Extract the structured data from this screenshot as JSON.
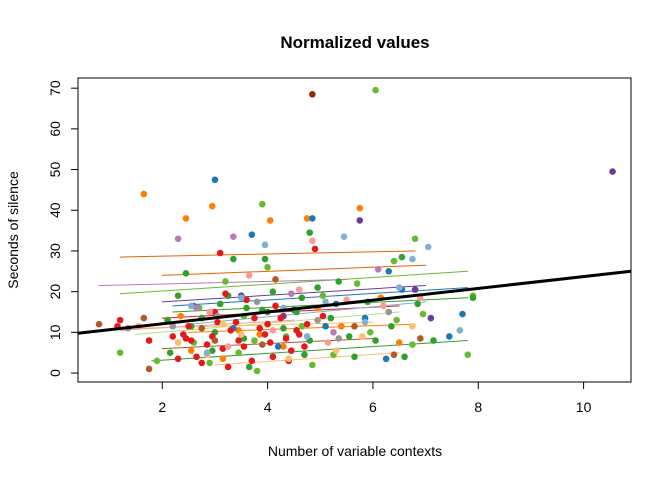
{
  "chart_data": {
    "type": "scatter",
    "title": "Normalized values",
    "xlabel": "Number of variable contexts",
    "ylabel": "Seconds of silence",
    "xlim": [
      0.4,
      10.9
    ],
    "ylim": [
      -2.2,
      72.5
    ],
    "x_ticks": [
      "2",
      "4",
      "6",
      "8",
      "10"
    ],
    "y_ticks": [
      "0",
      "10",
      "20",
      "30",
      "40",
      "50",
      "60",
      "70"
    ],
    "grid": false,
    "legend": "none",
    "overall_fit": {
      "color": "#000000",
      "intercept": 9.2,
      "slope": 1.45
    },
    "group_fits": [
      {
        "color": "#e66101",
        "x": [
          1.2,
          6.8
        ],
        "y": [
          28.5,
          30.0
        ]
      },
      {
        "color": "#e66101",
        "x": [
          2.0,
          7.0
        ],
        "y": [
          24.0,
          26.5
        ]
      },
      {
        "color": "#66bb33",
        "x": [
          1.2,
          7.8
        ],
        "y": [
          19.5,
          25.0
        ]
      },
      {
        "color": "#ba7ab5",
        "x": [
          0.8,
          5.5
        ],
        "y": [
          21.5,
          23.0
        ]
      },
      {
        "color": "#1f78b4",
        "x": [
          2.2,
          7.8
        ],
        "y": [
          16.5,
          21.0
        ]
      },
      {
        "color": "#6a3d9a",
        "x": [
          2.0,
          7.0
        ],
        "y": [
          17.5,
          21.5
        ]
      },
      {
        "color": "#33a02c",
        "x": [
          2.2,
          7.8
        ],
        "y": [
          15.0,
          18.5
        ]
      },
      {
        "color": "#e31a1c",
        "x": [
          2.0,
          6.5
        ],
        "y": [
          13.5,
          16.5
        ]
      },
      {
        "color": "#80b1d3",
        "x": [
          2.5,
          7.0
        ],
        "y": [
          12.0,
          17.5
        ]
      },
      {
        "color": "#b2df8a",
        "x": [
          1.5,
          6.5
        ],
        "y": [
          9.5,
          15.0
        ]
      },
      {
        "color": "#fdbf6f",
        "x": [
          1.5,
          6.0
        ],
        "y": [
          11.0,
          12.5
        ]
      },
      {
        "color": "#ff7f00",
        "x": [
          2.5,
          6.8
        ],
        "y": [
          10.0,
          12.0
        ]
      },
      {
        "color": "#fb9a99",
        "x": [
          1.2,
          4.5
        ],
        "y": [
          10.5,
          13.0
        ]
      },
      {
        "color": "#33a02c",
        "x": [
          1.8,
          7.8
        ],
        "y": [
          3.0,
          8.0
        ]
      },
      {
        "color": "#b15928",
        "x": [
          2.0,
          6.0
        ],
        "y": [
          6.0,
          8.5
        ]
      },
      {
        "color": "#fdbf6f",
        "x": [
          3.0,
          6.5
        ],
        "y": [
          2.0,
          5.0
        ]
      }
    ],
    "series": [
      {
        "name": "",
        "color": "#8c2d04",
        "points": [
          [
            4.85,
            68.5
          ]
        ]
      },
      {
        "name": "",
        "color": "#6a3d9a",
        "points": [
          [
            10.55,
            49.5
          ],
          [
            5.75,
            37.5
          ],
          [
            7.1,
            13.5
          ],
          [
            4.3,
            14.0
          ],
          [
            3.5,
            19.0
          ],
          [
            6.8,
            20.5
          ]
        ]
      },
      {
        "name": "",
        "color": "#66bb33",
        "points": [
          [
            6.05,
            69.5
          ],
          [
            6.8,
            33.0
          ],
          [
            3.9,
            41.5
          ],
          [
            7.8,
            4.5
          ],
          [
            7.9,
            19.0
          ],
          [
            6.45,
            13.0
          ],
          [
            3.55,
            14.0
          ],
          [
            5.7,
            22.0
          ],
          [
            1.9,
            3.0
          ],
          [
            4.0,
            26.0
          ],
          [
            2.7,
            16.0
          ],
          [
            3.2,
            22.5
          ],
          [
            5.95,
            10.0
          ],
          [
            6.4,
            27.5
          ],
          [
            6.75,
            7.0
          ],
          [
            4.65,
            11.5
          ],
          [
            3.8,
            0.5
          ],
          [
            5.25,
            4.5
          ],
          [
            2.9,
            2.5
          ],
          [
            4.35,
            9.0
          ],
          [
            3.45,
            5.0
          ],
          [
            6.95,
            14.5
          ],
          [
            4.85,
            2.0
          ],
          [
            1.2,
            5.0
          ],
          [
            3.75,
            8.0
          ],
          [
            2.6,
            7.5
          ],
          [
            5.05,
            19.0
          ]
        ]
      },
      {
        "name": "",
        "color": "#ff7f00",
        "points": [
          [
            1.65,
            44.0
          ],
          [
            2.45,
            38.0
          ],
          [
            2.95,
            41.0
          ],
          [
            4.05,
            37.5
          ],
          [
            4.75,
            38.0
          ],
          [
            5.75,
            40.5
          ],
          [
            3.15,
            3.5
          ],
          [
            4.3,
            6.5
          ],
          [
            5.4,
            11.5
          ],
          [
            2.55,
            5.5
          ],
          [
            6.5,
            7.5
          ],
          [
            3.85,
            9.5
          ],
          [
            2.35,
            14.0
          ],
          [
            6.15,
            18.5
          ],
          [
            3.45,
            10.5
          ],
          [
            4.95,
            16.0
          ]
        ]
      },
      {
        "name": "",
        "color": "#1f78b4",
        "points": [
          [
            3.0,
            47.5
          ],
          [
            4.85,
            38.0
          ],
          [
            3.7,
            34.0
          ],
          [
            6.3,
            25.0
          ],
          [
            5.1,
            11.5
          ],
          [
            2.6,
            16.5
          ],
          [
            6.55,
            20.5
          ],
          [
            4.2,
            6.5
          ],
          [
            7.45,
            9.0
          ],
          [
            5.85,
            13.5
          ],
          [
            4.5,
            15.5
          ],
          [
            3.35,
            11.0
          ],
          [
            7.7,
            14.5
          ],
          [
            5.3,
            17.0
          ],
          [
            6.25,
            3.5
          ]
        ]
      },
      {
        "name": "",
        "color": "#33a02c",
        "points": [
          [
            3.95,
            28.0
          ],
          [
            3.35,
            28.0
          ],
          [
            4.8,
            34.5
          ],
          [
            2.45,
            24.5
          ],
          [
            6.55,
            28.5
          ],
          [
            5.65,
            4.0
          ],
          [
            2.15,
            5.0
          ],
          [
            4.7,
            4.5
          ],
          [
            7.9,
            18.5
          ],
          [
            4.1,
            20.0
          ],
          [
            3.0,
            10.0
          ],
          [
            5.9,
            17.5
          ],
          [
            2.75,
            13.5
          ],
          [
            4.55,
            15.0
          ],
          [
            6.6,
            4.0
          ],
          [
            3.65,
            1.5
          ],
          [
            5.2,
            13.5
          ],
          [
            2.3,
            19.0
          ],
          [
            3.9,
            15.5
          ],
          [
            6.05,
            8.0
          ],
          [
            4.95,
            21.0
          ],
          [
            2.55,
            11.5
          ],
          [
            3.25,
            19.0
          ],
          [
            4.3,
            11.0
          ],
          [
            5.55,
            9.0
          ],
          [
            7.15,
            8.0
          ],
          [
            3.6,
            16.0
          ],
          [
            2.95,
            5.5
          ],
          [
            4.65,
            18.5
          ],
          [
            6.35,
            11.5
          ],
          [
            4.0,
            15.0
          ],
          [
            2.1,
            13.0
          ],
          [
            3.55,
            8.5
          ],
          [
            5.35,
            22.5
          ],
          [
            4.8,
            8.0
          ],
          [
            3.1,
            17.0
          ],
          [
            6.85,
            17.0
          ]
        ]
      },
      {
        "name": "",
        "color": "#e31a1c",
        "points": [
          [
            1.2,
            13.0
          ],
          [
            1.75,
            8.0
          ],
          [
            2.3,
            3.5
          ],
          [
            2.45,
            8.5
          ],
          [
            2.5,
            11.5
          ],
          [
            2.75,
            2.5
          ],
          [
            2.95,
            9.0
          ],
          [
            3.1,
            29.5
          ],
          [
            3.15,
            6.0
          ],
          [
            3.25,
            1.5
          ],
          [
            3.4,
            12.5
          ],
          [
            3.55,
            6.5
          ],
          [
            3.7,
            3.0
          ],
          [
            3.85,
            11.0
          ],
          [
            4.05,
            7.5
          ],
          [
            4.1,
            4.0
          ],
          [
            4.25,
            13.5
          ],
          [
            4.45,
            5.5
          ],
          [
            4.6,
            9.5
          ],
          [
            4.75,
            12.0
          ],
          [
            4.9,
            30.5
          ],
          [
            5.05,
            14.0
          ],
          [
            2.65,
            4.0
          ],
          [
            3.0,
            15.0
          ],
          [
            3.3,
            10.5
          ],
          [
            3.6,
            18.0
          ],
          [
            4.15,
            16.5
          ],
          [
            4.4,
            3.0
          ],
          [
            2.2,
            9.0
          ],
          [
            2.85,
            7.0
          ],
          [
            3.45,
            8.0
          ],
          [
            3.95,
            9.5
          ],
          [
            4.55,
            10.5
          ],
          [
            3.75,
            13.5
          ],
          [
            2.55,
            8.0
          ],
          [
            3.05,
            12.5
          ],
          [
            4.35,
            8.5
          ],
          [
            1.15,
            11.5
          ],
          [
            2.4,
            9.5
          ],
          [
            3.2,
            19.5
          ],
          [
            4.0,
            12.0
          ],
          [
            4.7,
            6.5
          ]
        ]
      },
      {
        "name": "",
        "color": "#fb9a99",
        "points": [
          [
            4.85,
            32.5
          ],
          [
            4.6,
            20.5
          ],
          [
            6.9,
            18.5
          ],
          [
            1.55,
            11.5
          ],
          [
            3.65,
            24.0
          ],
          [
            5.5,
            18.0
          ],
          [
            2.9,
            15.0
          ],
          [
            4.1,
            10.5
          ],
          [
            6.2,
            16.5
          ],
          [
            3.25,
            6.5
          ],
          [
            5.15,
            7.5
          ]
        ]
      },
      {
        "name": "",
        "color": "#fdbf6f",
        "points": [
          [
            5.3,
            5.5
          ],
          [
            2.3,
            7.5
          ],
          [
            4.4,
            3.5
          ],
          [
            6.75,
            11.5
          ],
          [
            3.5,
            9.5
          ],
          [
            2.85,
            4.5
          ],
          [
            5.8,
            9.0
          ],
          [
            3.15,
            12.0
          ]
        ]
      },
      {
        "name": "",
        "color": "#80b1d3",
        "points": [
          [
            3.95,
            31.5
          ],
          [
            5.45,
            33.5
          ],
          [
            6.75,
            28.0
          ],
          [
            7.05,
            31.0
          ],
          [
            2.55,
            16.5
          ],
          [
            4.3,
            16.0
          ],
          [
            5.85,
            12.5
          ],
          [
            3.5,
            18.5
          ],
          [
            6.5,
            21.0
          ],
          [
            7.65,
            10.5
          ],
          [
            4.75,
            9.0
          ],
          [
            2.85,
            5.0
          ],
          [
            5.1,
            17.5
          ]
        ]
      },
      {
        "name": "",
        "color": "#ba7ab5",
        "points": [
          [
            2.3,
            33.0
          ],
          [
            3.35,
            33.5
          ],
          [
            2.65,
            16.0
          ],
          [
            4.45,
            19.5
          ],
          [
            6.1,
            25.5
          ],
          [
            5.25,
            10.0
          ]
        ]
      },
      {
        "name": "",
        "color": "#b15928",
        "points": [
          [
            0.8,
            12.0
          ],
          [
            1.65,
            13.5
          ],
          [
            1.75,
            1.0
          ],
          [
            3.0,
            8.0
          ],
          [
            4.15,
            23.0
          ],
          [
            5.65,
            11.5
          ],
          [
            6.4,
            4.5
          ],
          [
            6.9,
            8.5
          ],
          [
            2.75,
            11.0
          ],
          [
            3.9,
            7.0
          ]
        ]
      },
      {
        "name": "",
        "color": "#969696",
        "points": [
          [
            1.35,
            11.0
          ],
          [
            2.2,
            11.5
          ],
          [
            3.05,
            14.0
          ],
          [
            4.95,
            13.0
          ],
          [
            6.3,
            15.0
          ],
          [
            5.35,
            8.5
          ],
          [
            3.8,
            17.5
          ]
        ]
      }
    ]
  }
}
